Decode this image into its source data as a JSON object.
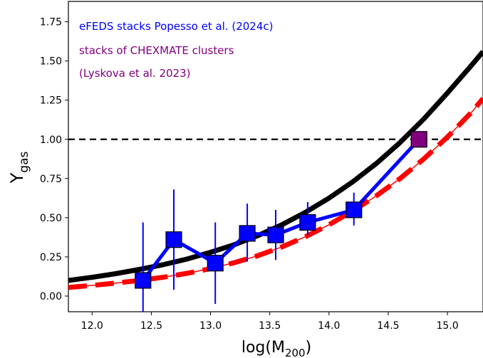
{
  "chart_data": {
    "type": "line",
    "xlabel": {
      "main": "log(M",
      "sub": "200",
      "close": ")"
    },
    "ylabel": {
      "main": "Y",
      "sub": "gas"
    },
    "xlim": [
      11.8,
      15.3
    ],
    "ylim": [
      -0.1,
      1.88
    ],
    "xticks": [
      12.0,
      12.5,
      13.0,
      13.5,
      14.0,
      14.5,
      15.0
    ],
    "yticks": [
      0.0,
      0.25,
      0.5,
      0.75,
      1.0,
      1.25,
      1.5,
      1.75
    ],
    "grid": false,
    "legend": [
      {
        "text": "eFEDS stacks Popesso et al. (2024c)",
        "color": "#0000ff"
      },
      {
        "text": "stacks of CHEXMATE clusters",
        "color": "#800080"
      },
      {
        "text": "(Lyskova et al. 2023)",
        "color": "#800080"
      }
    ],
    "reference_line": {
      "y": 1.0,
      "color": "#000000",
      "style": "dashed"
    },
    "series": [
      {
        "style": "solid-thick",
        "color": "#000000",
        "x": [
          11.8,
          12.0,
          12.2,
          12.4,
          12.6,
          12.8,
          13.0,
          13.2,
          13.4,
          13.6,
          13.8,
          14.0,
          14.2,
          14.4,
          14.6,
          14.8,
          15.0,
          15.2,
          15.3
        ],
        "y": [
          0.1,
          0.12,
          0.143,
          0.17,
          0.2,
          0.236,
          0.279,
          0.328,
          0.386,
          0.454,
          0.534,
          0.625,
          0.729,
          0.846,
          0.98,
          1.13,
          1.296,
          1.47,
          1.56
        ]
      },
      {
        "style": "dashed-thick",
        "color": "#ff0000",
        "x": [
          11.8,
          12.0,
          12.2,
          12.4,
          12.6,
          12.8,
          13.0,
          13.2,
          13.4,
          13.6,
          13.8,
          14.0,
          14.2,
          14.4,
          14.6,
          14.8,
          15.0,
          15.2,
          15.3
        ],
        "y": [
          0.055,
          0.068,
          0.083,
          0.1,
          0.12,
          0.145,
          0.175,
          0.213,
          0.258,
          0.313,
          0.378,
          0.455,
          0.543,
          0.64,
          0.75,
          0.875,
          1.015,
          1.17,
          1.26
        ]
      },
      {
        "style": "thin",
        "color": "#ff0000",
        "x": [
          11.8,
          12.0,
          12.2,
          12.4,
          12.6,
          12.8,
          13.0,
          13.2,
          13.4,
          13.6,
          13.8,
          14.0,
          14.2,
          14.4,
          14.6,
          14.8,
          15.0,
          15.2,
          15.3
        ],
        "y": [
          0.055,
          0.068,
          0.083,
          0.1,
          0.12,
          0.145,
          0.175,
          0.213,
          0.258,
          0.313,
          0.378,
          0.455,
          0.543,
          0.64,
          0.75,
          0.875,
          1.015,
          1.17,
          1.26
        ]
      },
      {
        "style": "markers-line",
        "color": "#0000ff",
        "x": [
          12.43,
          12.69,
          13.04,
          13.31,
          13.55,
          13.82,
          14.21,
          14.76
        ],
        "y": [
          0.1,
          0.36,
          0.21,
          0.4,
          0.39,
          0.47,
          0.55,
          1.0
        ],
        "yerr_low": [
          0.2,
          0.32,
          0.26,
          0.18,
          0.16,
          0.08,
          0.1,
          0.0
        ],
        "yerr_high": [
          0.37,
          0.32,
          0.26,
          0.19,
          0.16,
          0.13,
          0.11,
          0.0
        ],
        "marker_colors": [
          "#0000ff",
          "#0000ff",
          "#0000ff",
          "#0000ff",
          "#0000ff",
          "#0000ff",
          "#0000ff",
          "#800080"
        ]
      }
    ]
  }
}
